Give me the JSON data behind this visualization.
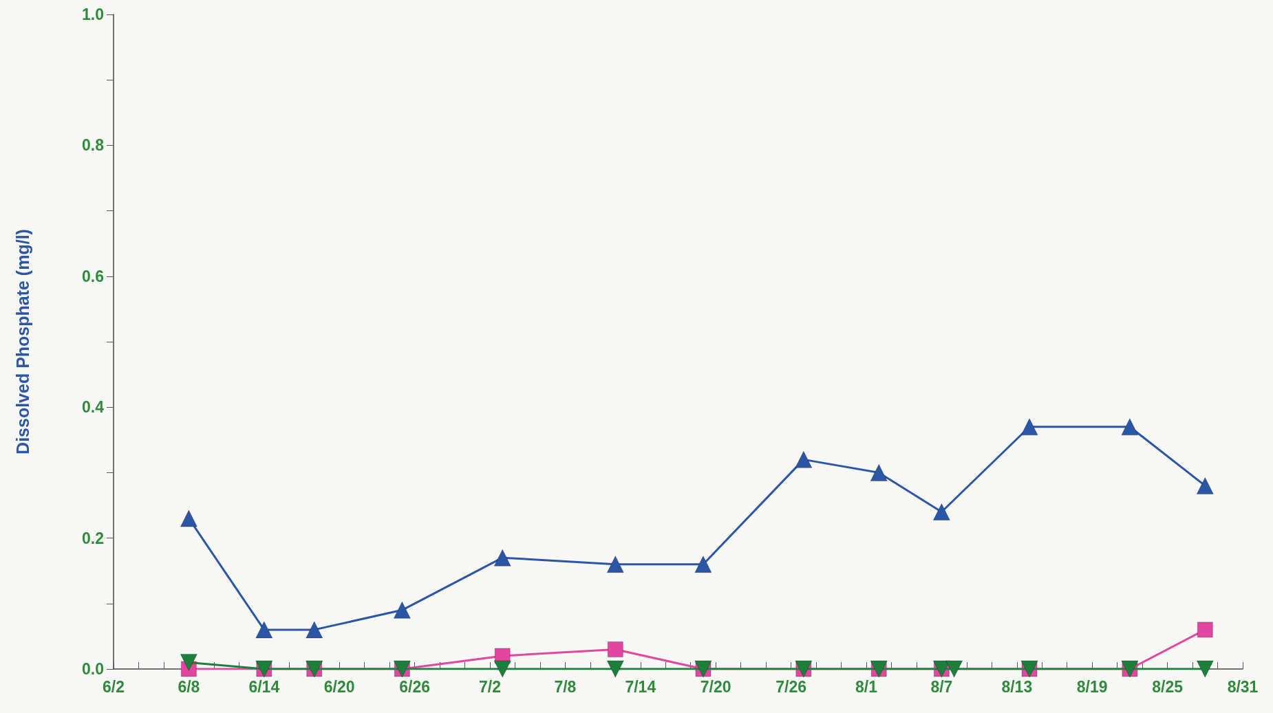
{
  "chart_data": {
    "type": "line",
    "ylabel": "Dissolved Phosphate (mg/l)",
    "xlim": [
      "--06-02",
      "--08-31"
    ],
    "xticks": [
      {
        "value": "--06-02",
        "label": "6/2"
      },
      {
        "value": "--06-04",
        "label": null
      },
      {
        "value": "--06-06",
        "label": null
      },
      {
        "value": "--06-08",
        "label": "6/8"
      },
      {
        "value": "--06-10",
        "label": null
      },
      {
        "value": "--06-12",
        "label": null
      },
      {
        "value": "--06-14",
        "label": "6/14"
      },
      {
        "value": "--06-16",
        "label": null
      },
      {
        "value": "--06-18",
        "label": null
      },
      {
        "value": "--06-20",
        "label": "6/20"
      },
      {
        "value": "--06-22",
        "label": null
      },
      {
        "value": "--06-24",
        "label": null
      },
      {
        "value": "--06-26",
        "label": "6/26"
      },
      {
        "value": "--06-28",
        "label": null
      },
      {
        "value": "--06-30",
        "label": null
      },
      {
        "value": "--07-02",
        "label": "7/2"
      },
      {
        "value": "--07-04",
        "label": null
      },
      {
        "value": "--07-06",
        "label": null
      },
      {
        "value": "--07-08",
        "label": "7/8"
      },
      {
        "value": "--07-10",
        "label": null
      },
      {
        "value": "--07-12",
        "label": null
      },
      {
        "value": "--07-14",
        "label": "7/14"
      },
      {
        "value": "--07-16",
        "label": null
      },
      {
        "value": "--07-18",
        "label": null
      },
      {
        "value": "--07-20",
        "label": "7/20"
      },
      {
        "value": "--07-22",
        "label": null
      },
      {
        "value": "--07-24",
        "label": null
      },
      {
        "value": "--07-26",
        "label": "7/26"
      },
      {
        "value": "--07-28",
        "label": null
      },
      {
        "value": "--07-30",
        "label": null
      },
      {
        "value": "--08-01",
        "label": "8/1"
      },
      {
        "value": "--08-03",
        "label": null
      },
      {
        "value": "--08-05",
        "label": null
      },
      {
        "value": "--08-07",
        "label": "8/7"
      },
      {
        "value": "--08-09",
        "label": null
      },
      {
        "value": "--08-11",
        "label": null
      },
      {
        "value": "--08-13",
        "label": "8/13"
      },
      {
        "value": "--08-15",
        "label": null
      },
      {
        "value": "--08-17",
        "label": null
      },
      {
        "value": "--08-19",
        "label": "8/19"
      },
      {
        "value": "--08-21",
        "label": null
      },
      {
        "value": "--08-23",
        "label": null
      },
      {
        "value": "--08-25",
        "label": "8/25"
      },
      {
        "value": "--08-27",
        "label": null
      },
      {
        "value": "--08-29",
        "label": null
      },
      {
        "value": "--08-31",
        "label": "8/31"
      }
    ],
    "ylim": [
      0,
      1.0
    ],
    "yticks": [
      {
        "value": 0,
        "label": "0.0"
      },
      {
        "value": 0.1,
        "label": null
      },
      {
        "value": 0.2,
        "label": "0.2"
      },
      {
        "value": 0.3,
        "label": null
      },
      {
        "value": 0.4,
        "label": "0.4"
      },
      {
        "value": 0.5,
        "label": null
      },
      {
        "value": 0.6,
        "label": "0.6"
      },
      {
        "value": 0.7,
        "label": null
      },
      {
        "value": 0.8,
        "label": "0.8"
      },
      {
        "value": 0.9,
        "label": null
      },
      {
        "value": 1.0,
        "label": "1.0"
      }
    ],
    "grid": false,
    "line_style": "solid",
    "series": [
      {
        "color": "#2b56a6",
        "marker": "triangle",
        "x": [
          "--06-08",
          "--06-14",
          "--06-18",
          "--06-25",
          "--07-03",
          "--07-12",
          "--07-19",
          "--07-27",
          "--08-02",
          "--08-07",
          "--08-14",
          "--08-22",
          "--08-28"
        ],
        "values": [
          0.23,
          0.06,
          0.06,
          0.09,
          0.17,
          0.16,
          0.16,
          0.32,
          0.3,
          0.24,
          0.37,
          0.37,
          0.28
        ]
      },
      {
        "color": "#e2469e",
        "marker": "square",
        "x": [
          "--06-08",
          "--06-14",
          "--06-18",
          "--06-25",
          "--07-03",
          "--07-12",
          "--07-19",
          "--07-27",
          "--08-02",
          "--08-07",
          "--08-14",
          "--08-22",
          "--08-28"
        ],
        "values": [
          0.0,
          0.0,
          0.0,
          0.0,
          0.02,
          0.03,
          0.0,
          0.0,
          0.0,
          0.0,
          0.0,
          0.0,
          0.06
        ]
      },
      {
        "color": "#1c7f3c",
        "marker": "triangle_down",
        "x": [
          "--06-08",
          "--06-14",
          "--06-18",
          "--06-25",
          "--07-03",
          "--07-12",
          "--07-19",
          "--07-27",
          "--08-02",
          "--08-07",
          "--08-08",
          "--08-14",
          "--08-22",
          "--08-28"
        ],
        "values": [
          0.01,
          0.0,
          0.0,
          0.0,
          0.0,
          0.0,
          0.0,
          0.0,
          0.0,
          0.0,
          0.0,
          0.0,
          0.0,
          0.0
        ]
      }
    ]
  }
}
